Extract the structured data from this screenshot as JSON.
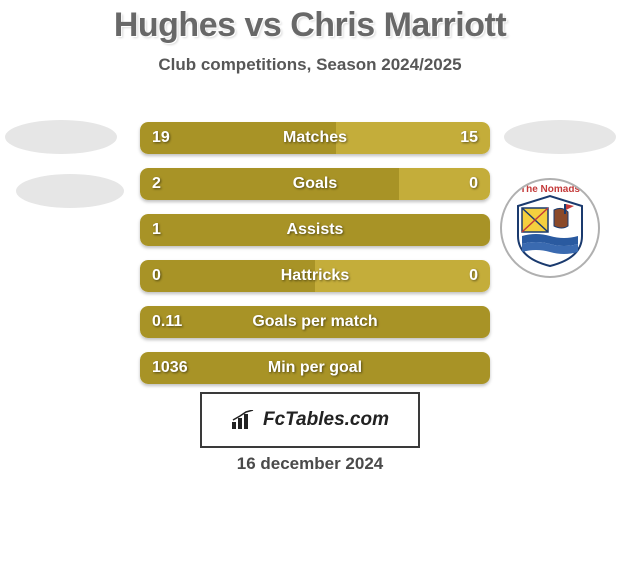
{
  "title": "Hughes vs Chris Marriott",
  "subtitle": "Club competitions, Season 2024/2025",
  "date": "16 december 2024",
  "logo_text": "FcTables.com",
  "badge_text": "The Nomads",
  "colors": {
    "bar_primary": "#a89326",
    "bar_secondary": "#c4ad3a",
    "bar_tertiary": "#8f7d1f",
    "text_gray": "#686868",
    "ellipse": "#e6e6e6"
  },
  "bars": [
    {
      "label": "Matches",
      "left": "19",
      "right": "15",
      "fill_pct": 56,
      "show_right": true
    },
    {
      "label": "Goals",
      "left": "2",
      "right": "0",
      "fill_pct": 74,
      "show_right": true
    },
    {
      "label": "Assists",
      "left": "1",
      "right": "",
      "fill_pct": 100,
      "show_right": false
    },
    {
      "label": "Hattricks",
      "left": "0",
      "right": "0",
      "fill_pct": 50,
      "show_right": true
    },
    {
      "label": "Goals per match",
      "left": "0.11",
      "right": "",
      "fill_pct": 100,
      "show_right": false
    },
    {
      "label": "Min per goal",
      "left": "1036",
      "right": "",
      "fill_pct": 100,
      "show_right": false
    }
  ]
}
